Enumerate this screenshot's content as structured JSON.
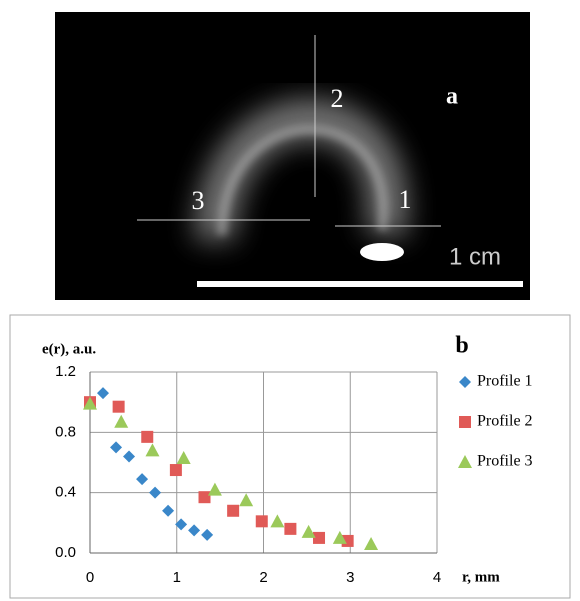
{
  "image_panel": {
    "label": "a",
    "line_labels": [
      "1",
      "2",
      "3"
    ],
    "scale_text": "1 cm"
  },
  "chart_data": {
    "type": "scatter",
    "panel_label": "b",
    "y_label": "e(r), a.u.",
    "x_label": "r, mm",
    "xlim": [
      0,
      4
    ],
    "xticks": [
      0,
      1,
      2,
      3,
      4
    ],
    "ylim": [
      0,
      1.2
    ],
    "yticks": [
      {
        "value": 0,
        "label": "0.0"
      },
      0.4,
      0.8,
      1.2
    ],
    "grid": true,
    "legend": "right",
    "series": [
      {
        "name": "Profile 1",
        "color": "#3a87c9",
        "marker": "diamond",
        "x": [
          0,
          0.15,
          0.3,
          0.45,
          0.6,
          0.75,
          0.9,
          1.05,
          1.2,
          1.35
        ],
        "values": [
          1.0,
          1.06,
          0.7,
          0.64,
          0.49,
          0.4,
          0.28,
          0.19,
          0.15,
          0.12
        ]
      },
      {
        "name": "Profile 2",
        "color": "#e05a57",
        "marker": "square",
        "x": [
          0,
          0.33,
          0.66,
          0.99,
          1.32,
          1.65,
          1.98,
          2.31,
          2.64,
          2.97
        ],
        "values": [
          1.0,
          0.97,
          0.77,
          0.55,
          0.37,
          0.28,
          0.21,
          0.16,
          0.1,
          0.08
        ]
      },
      {
        "name": "Profile 3",
        "color": "#9bc95a",
        "marker": "triangle",
        "x": [
          0,
          0.36,
          0.72,
          1.08,
          1.44,
          1.8,
          2.16,
          2.52,
          2.88,
          3.24
        ],
        "values": [
          0.99,
          0.87,
          0.68,
          0.63,
          0.42,
          0.35,
          0.21,
          0.14,
          0.1,
          0.06
        ]
      }
    ]
  }
}
